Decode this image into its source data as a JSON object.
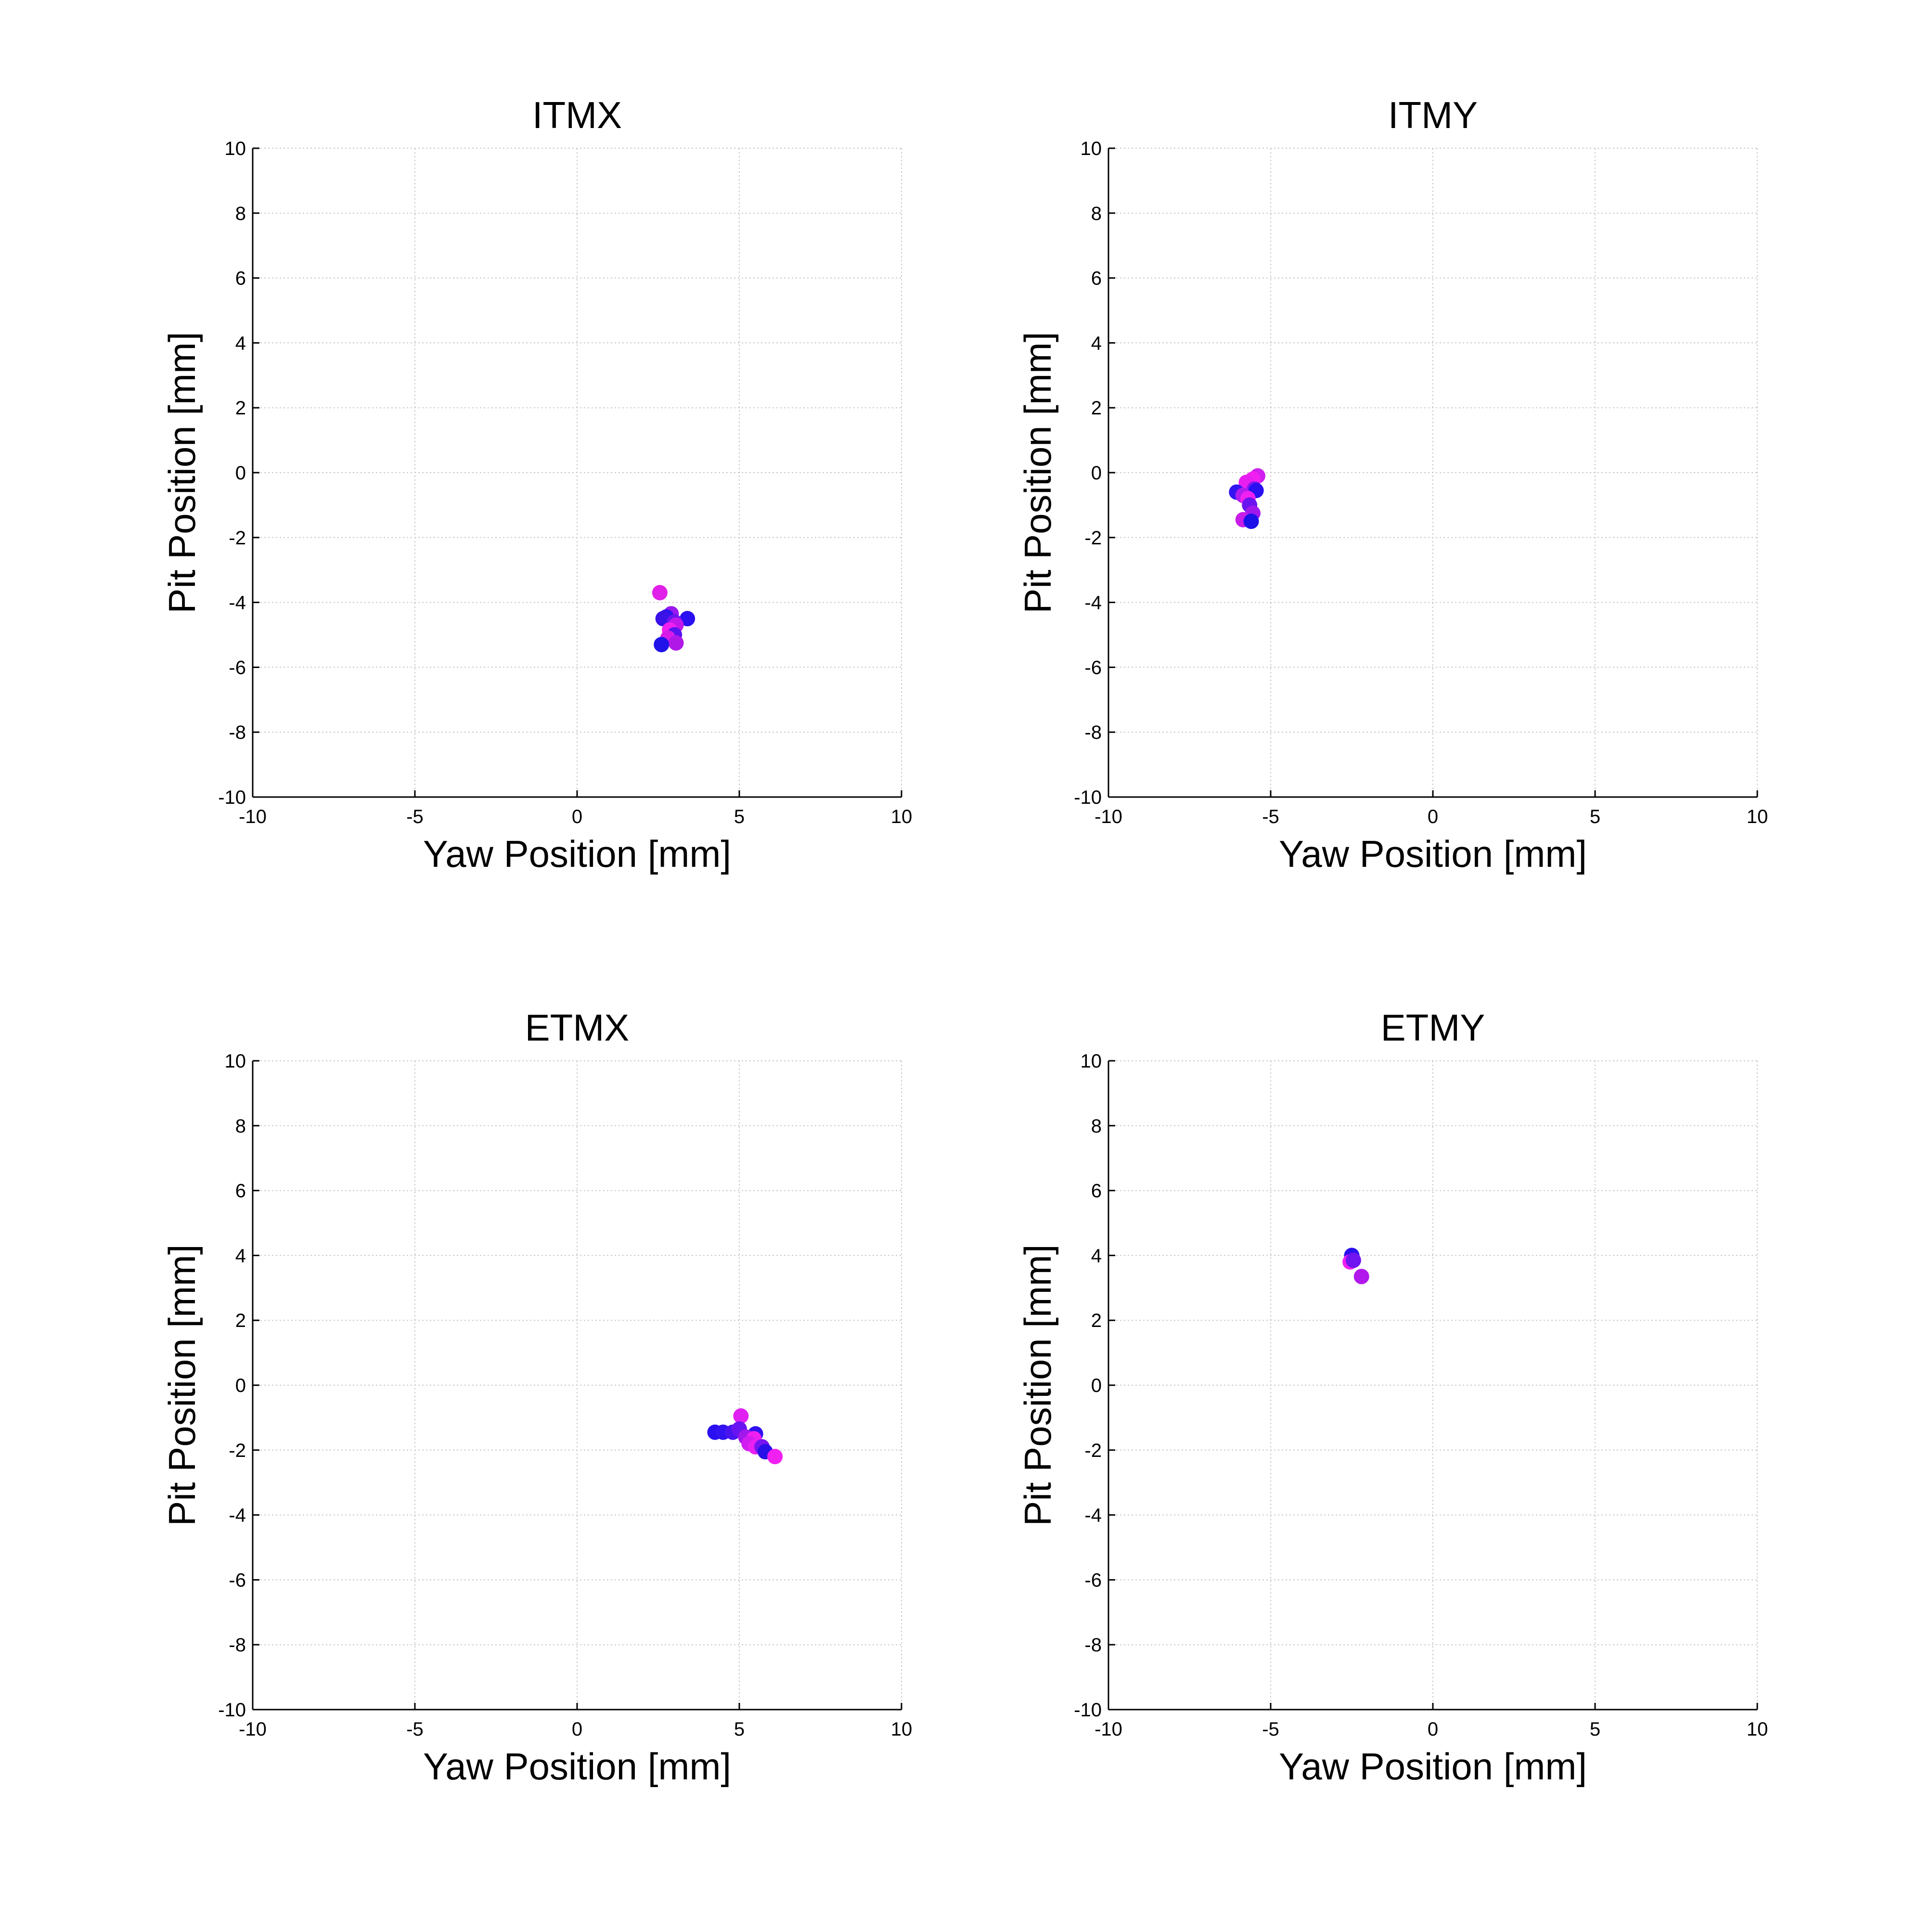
{
  "chart_data": [
    {
      "type": "scatter",
      "title": "ITMX",
      "xlabel": "Yaw Position [mm]",
      "ylabel": "Pit Position [mm]",
      "xlim": [
        -10,
        10
      ],
      "ylim": [
        -10,
        10
      ],
      "xticks": [
        -10,
        -5,
        0,
        5,
        10
      ],
      "yticks": [
        -10,
        -8,
        -6,
        -4,
        -2,
        0,
        2,
        4,
        6,
        8,
        10
      ],
      "grid": true,
      "points": [
        {
          "x": 2.55,
          "y": -3.7,
          "color": "#e020e8"
        },
        {
          "x": 2.9,
          "y": -4.35,
          "color": "#9a18f0"
        },
        {
          "x": 2.75,
          "y": -4.45,
          "color": "#2a14f0"
        },
        {
          "x": 2.65,
          "y": -4.5,
          "color": "#3a12e8"
        },
        {
          "x": 3.4,
          "y": -4.5,
          "color": "#2a10f0"
        },
        {
          "x": 3.0,
          "y": -4.6,
          "color": "#6a14f0"
        },
        {
          "x": 3.05,
          "y": -4.7,
          "color": "#c018ec"
        },
        {
          "x": 2.85,
          "y": -4.85,
          "color": "#f020f0"
        },
        {
          "x": 3.0,
          "y": -5.0,
          "color": "#5a12f0"
        },
        {
          "x": 2.8,
          "y": -5.1,
          "color": "#d81ce8"
        },
        {
          "x": 3.05,
          "y": -5.25,
          "color": "#b018e8"
        },
        {
          "x": 2.6,
          "y": -5.3,
          "color": "#2012e8"
        }
      ]
    },
    {
      "type": "scatter",
      "title": "ITMY",
      "xlabel": "Yaw Position [mm]",
      "ylabel": "Pit Position [mm]",
      "xlim": [
        -10,
        10
      ],
      "ylim": [
        -10,
        10
      ],
      "xticks": [
        -10,
        -5,
        0,
        5,
        10
      ],
      "yticks": [
        -10,
        -8,
        -6,
        -4,
        -2,
        0,
        2,
        4,
        6,
        8,
        10
      ],
      "grid": true,
      "points": [
        {
          "x": -5.4,
          "y": -0.1,
          "color": "#d020f0"
        },
        {
          "x": -5.55,
          "y": -0.2,
          "color": "#f020f0"
        },
        {
          "x": -5.75,
          "y": -0.3,
          "color": "#e81ef0"
        },
        {
          "x": -5.5,
          "y": -0.5,
          "color": "#8a16f0"
        },
        {
          "x": -5.45,
          "y": -0.55,
          "color": "#2a10f0"
        },
        {
          "x": -6.05,
          "y": -0.6,
          "color": "#3214f0"
        },
        {
          "x": -5.85,
          "y": -0.7,
          "color": "#b01cf0"
        },
        {
          "x": -5.7,
          "y": -0.8,
          "color": "#f020f0"
        },
        {
          "x": -5.65,
          "y": -1.0,
          "color": "#6a14f0"
        },
        {
          "x": -5.55,
          "y": -1.25,
          "color": "#a018ec"
        },
        {
          "x": -5.85,
          "y": -1.45,
          "color": "#c81ce8"
        },
        {
          "x": -5.6,
          "y": -1.5,
          "color": "#1c10e8"
        }
      ]
    },
    {
      "type": "scatter",
      "title": "ETMX",
      "xlabel": "Yaw Position [mm]",
      "ylabel": "Pit Position [mm]",
      "xlim": [
        -10,
        10
      ],
      "ylim": [
        -10,
        10
      ],
      "xticks": [
        -10,
        -5,
        0,
        5,
        10
      ],
      "yticks": [
        -10,
        -8,
        -6,
        -4,
        -2,
        0,
        2,
        4,
        6,
        8,
        10
      ],
      "grid": true,
      "points": [
        {
          "x": 5.05,
          "y": -0.95,
          "color": "#e020f0"
        },
        {
          "x": 4.25,
          "y": -1.45,
          "color": "#2a10f0"
        },
        {
          "x": 4.5,
          "y": -1.45,
          "color": "#3212f0"
        },
        {
          "x": 4.8,
          "y": -1.45,
          "color": "#4a14f0"
        },
        {
          "x": 5.0,
          "y": -1.35,
          "color": "#6814f0"
        },
        {
          "x": 5.5,
          "y": -1.5,
          "color": "#3010f0"
        },
        {
          "x": 5.2,
          "y": -1.6,
          "color": "#a018ec"
        },
        {
          "x": 5.45,
          "y": -1.65,
          "color": "#f020f0"
        },
        {
          "x": 5.3,
          "y": -1.8,
          "color": "#d01ef0"
        },
        {
          "x": 5.5,
          "y": -1.9,
          "color": "#e820f0"
        },
        {
          "x": 5.7,
          "y": -1.9,
          "color": "#7814f0"
        },
        {
          "x": 5.8,
          "y": -2.05,
          "color": "#2a10e8"
        },
        {
          "x": 6.1,
          "y": -2.2,
          "color": "#f020f0"
        }
      ]
    },
    {
      "type": "scatter",
      "title": "ETMY",
      "xlabel": "Yaw Position [mm]",
      "ylabel": "Pit Position [mm]",
      "xlim": [
        -10,
        10
      ],
      "ylim": [
        -10,
        10
      ],
      "xticks": [
        -10,
        -5,
        0,
        5,
        10
      ],
      "yticks": [
        -10,
        -8,
        -6,
        -4,
        -2,
        0,
        2,
        4,
        6,
        8,
        10
      ],
      "grid": true,
      "points": [
        {
          "x": -2.5,
          "y": 4.0,
          "color": "#2a10f0"
        },
        {
          "x": -2.55,
          "y": 3.8,
          "color": "#f020f0"
        },
        {
          "x": -2.45,
          "y": 3.85,
          "color": "#7014f0"
        },
        {
          "x": -2.2,
          "y": 3.35,
          "color": "#b018ec"
        }
      ]
    }
  ]
}
